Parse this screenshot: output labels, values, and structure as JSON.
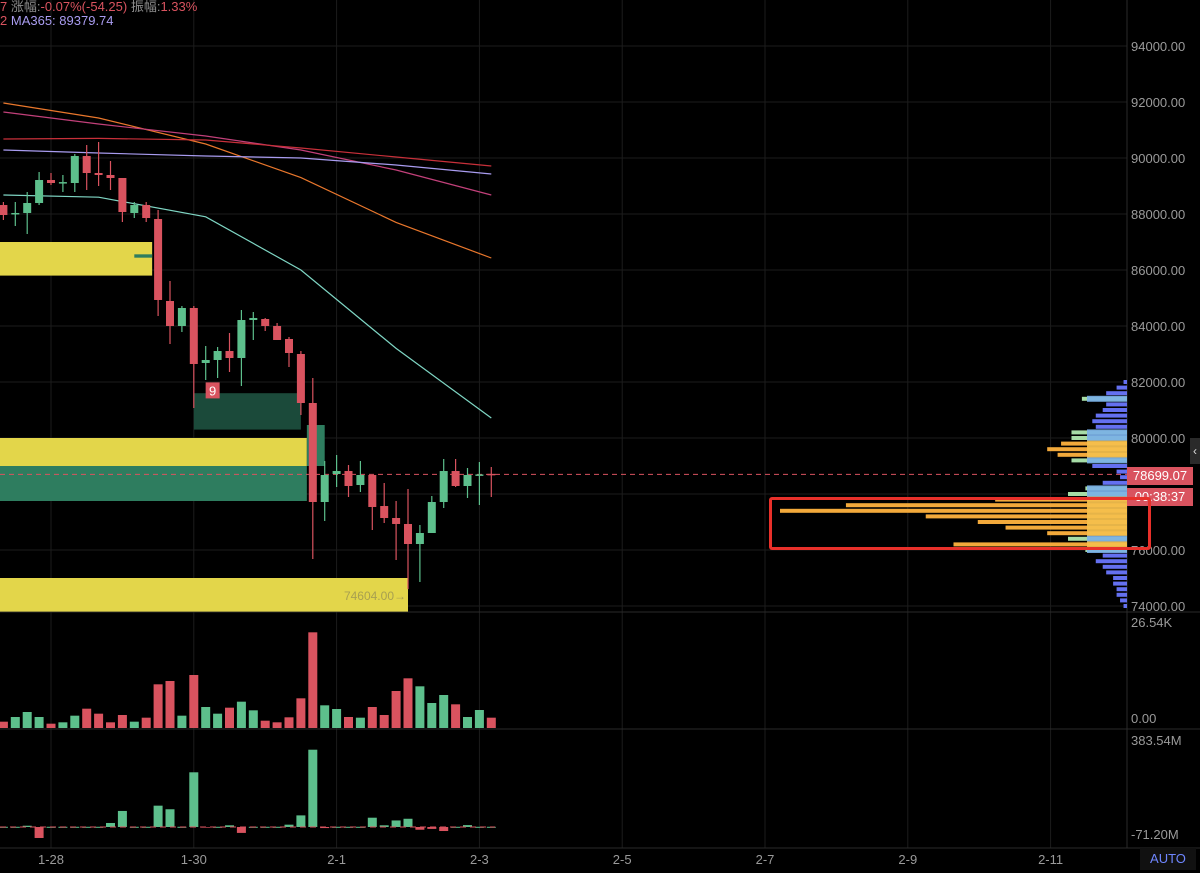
{
  "header": {
    "line1_prefix": "7",
    "change_label": "涨幅:",
    "change_value": "-0.07%(-54.25)",
    "amplitude_label": "振幅:",
    "amplitude_value": "1.33%",
    "line2_prefix": "2",
    "ma365_label": "MA365:",
    "ma365_value": "89379.74"
  },
  "price_tag": "78699.07",
  "countdown": "00:38:37",
  "auto_button": "AUTO",
  "collapse_icon": "chevron-left-icon",
  "colors": {
    "up": "#5dbf8c",
    "down": "#d9535f",
    "zone_yellow": "#e3d64a",
    "zone_green": "#2e7d5f",
    "zone_dark_green": "#1b4a3a",
    "annotation": "#e8302a",
    "ma_teal": "#7fd6c4",
    "ma_orange": "#e9772c",
    "ma_magenta": "#c2407a",
    "ma_red": "#c8303a",
    "ma365": "#a99cf0"
  },
  "chart_data": [
    {
      "type": "candlestick",
      "interval": "4h",
      "price_axis": {
        "ticks": [
          "94000.00",
          "92000.00",
          "90000.00",
          "88000.00",
          "86000.00",
          "84000.00",
          "82000.00",
          "80000.00",
          "76000.00",
          "74000.00"
        ],
        "range": [
          74000,
          94000
        ]
      },
      "time_axis": {
        "ticks": [
          "1-28",
          "1-30",
          "2-1",
          "2-3",
          "2-5",
          "2-7",
          "2-9",
          "2-11"
        ]
      },
      "grid": true,
      "last_price": 78699.07,
      "candles": [
        [
          "01-27 08:00",
          88321,
          88429,
          87786,
          87964
        ],
        [
          "01-27 12:00",
          88000,
          88429,
          87571,
          88036
        ],
        [
          "01-27 16:00",
          88036,
          88786,
          87286,
          88393
        ],
        [
          "01-27 20:00",
          88393,
          89500,
          88321,
          89214
        ],
        [
          "01-28 00:00",
          89214,
          89464,
          89036,
          89107
        ],
        [
          "01-28 04:00",
          89107,
          89393,
          88786,
          89140
        ],
        [
          "01-28 08:00",
          89107,
          90143,
          88786,
          90071
        ],
        [
          "01-28 12:00",
          90071,
          90464,
          88857,
          89464
        ],
        [
          "01-28 16:00",
          89464,
          90571,
          89000,
          89393
        ],
        [
          "01-28 20:00",
          89393,
          89893,
          88857,
          89286
        ],
        [
          "01-29 00:00",
          89286,
          89286,
          87714,
          88071
        ],
        [
          "01-29 04:00",
          88036,
          88429,
          87857,
          88321
        ],
        [
          "01-29 08:00",
          88321,
          88429,
          87714,
          87857
        ],
        [
          "01-29 12:00",
          87821,
          88143,
          84357,
          84929
        ],
        [
          "01-29 16:00",
          84893,
          85607,
          83357,
          84000
        ],
        [
          "01-29 20:00",
          84000,
          84714,
          83786,
          84643
        ],
        [
          "01-30 00:00",
          84643,
          84714,
          81071,
          82643
        ],
        [
          "01-30 04:00",
          82679,
          83286,
          82071,
          82786
        ],
        [
          "01-30 08:00",
          82786,
          83250,
          82143,
          83107
        ],
        [
          "01-30 12:00",
          83107,
          83750,
          82357,
          82857
        ],
        [
          "01-30 16:00",
          82857,
          84571,
          81857,
          84214
        ],
        [
          "01-30 20:00",
          84214,
          84500,
          83500,
          84286
        ],
        [
          "01-31 00:00",
          84250,
          84286,
          83821,
          84000
        ],
        [
          "01-31 04:00",
          84000,
          84107,
          83500,
          83500
        ],
        [
          "01-31 08:00",
          83536,
          83607,
          82536,
          83036
        ],
        [
          "01-31 12:00",
          83000,
          83107,
          80821,
          81250
        ],
        [
          "01-31 16:00",
          81250,
          82143,
          75679,
          77714
        ],
        [
          "01-31 20:00",
          77714,
          79179,
          77036,
          78679
        ],
        [
          "02-01 00:00",
          78714,
          79393,
          78250,
          78821
        ],
        [
          "02-01 04:00",
          78821,
          79036,
          77893,
          78286
        ],
        [
          "02-01 08:00",
          78321,
          79179,
          78071,
          78679
        ],
        [
          "02-01 12:00",
          78679,
          78679,
          76714,
          77536
        ],
        [
          "02-01 16:00",
          77571,
          78393,
          76964,
          77143
        ],
        [
          "02-01 20:00",
          77143,
          77750,
          75643,
          76929
        ],
        [
          "02-02 00:00",
          76929,
          78179,
          74604,
          76214
        ],
        [
          "02-02 04:00",
          76214,
          76893,
          74857,
          76607
        ],
        [
          "02-02 08:00",
          76607,
          77929,
          76607,
          77714
        ],
        [
          "02-02 12:00",
          77714,
          79250,
          77500,
          78821
        ],
        [
          "02-02 16:00",
          78821,
          79250,
          78250,
          78286
        ],
        [
          "02-02 20:00",
          78286,
          78929,
          77857,
          78679
        ],
        [
          "02-03 00:00",
          78679,
          79143,
          77607,
          78700
        ],
        [
          "02-03 04:00",
          78720,
          78964,
          77893,
          78699
        ]
      ],
      "moving_averages": [
        {
          "color_key": "ma_teal",
          "points": [
            [
              "01-27 08:00",
              88679
            ],
            [
              "01-28 16:00",
              88600
            ],
            [
              "01-30 04:00",
              87900
            ],
            [
              "01-31 12:00",
              86000
            ],
            [
              "02-01 20:00",
              83200
            ],
            [
              "02-03 04:00",
              80714
            ]
          ]
        },
        {
          "color_key": "ma_orange",
          "points": [
            [
              "01-27 08:00",
              91964
            ],
            [
              "01-28 16:00",
              91429
            ],
            [
              "01-30 04:00",
              90500
            ],
            [
              "01-31 12:00",
              89300
            ],
            [
              "02-01 20:00",
              87700
            ],
            [
              "02-03 04:00",
              86429
            ]
          ]
        },
        {
          "color_key": "ma_magenta",
          "points": [
            [
              "01-27 08:00",
              91643
            ],
            [
              "01-28 16:00",
              91214
            ],
            [
              "01-30 04:00",
              90786
            ],
            [
              "01-31 12:00",
              90286
            ],
            [
              "02-01 20:00",
              89571
            ],
            [
              "02-03 04:00",
              88679
            ]
          ]
        },
        {
          "color_key": "ma_red",
          "points": [
            [
              "01-27 08:00",
              90679
            ],
            [
              "01-28 16:00",
              90700
            ],
            [
              "01-30 04:00",
              90643
            ],
            [
              "01-31 12:00",
              90357
            ],
            [
              "02-01 20:00",
              90036
            ],
            [
              "02-03 04:00",
              89714
            ]
          ]
        },
        {
          "name": "MA365",
          "color_key": "ma365",
          "points": [
            [
              "01-27 08:00",
              90286
            ],
            [
              "01-28 16:00",
              90179
            ],
            [
              "01-30 04:00",
              90071
            ],
            [
              "01-31 12:00",
              90000
            ],
            [
              "02-01 20:00",
              89750
            ],
            [
              "02-03 04:00",
              89429
            ]
          ]
        }
      ],
      "zones": [
        {
          "color_key": "zone_yellow",
          "from": "01-27 04:00",
          "to": "01-29 10:00",
          "top": 87000,
          "bottom": 85800
        },
        {
          "color_key": "zone_green",
          "from": "01-29 04:00",
          "to": "01-29 10:00",
          "top": 86560,
          "bottom": 86440
        },
        {
          "color_key": "zone_dark_green",
          "from": "01-30 00:00",
          "to": "01-31 12:00",
          "top": 81600,
          "bottom": 80300
        },
        {
          "color_key": "zone_yellow",
          "from": "01-27 04:00",
          "to": "01-31 14:00",
          "top": 80000,
          "bottom": 79000
        },
        {
          "color_key": "zone_green",
          "from": "01-27 04:00",
          "to": "01-31 14:00",
          "top": 79000,
          "bottom": 77750
        },
        {
          "color_key": "zone_green",
          "from": "01-31 14:00",
          "to": "01-31 20:00",
          "top": 80464,
          "bottom": 79000
        },
        {
          "color_key": "zone_yellow",
          "from": "01-27 04:00",
          "to": "02-02 00:00",
          "top": 75000,
          "bottom": 73800,
          "label": "74604.00→"
        }
      ],
      "markers": [
        {
          "text": "9",
          "time": "01-30 06:00",
          "price": 81700
        }
      ],
      "volume_profile": [
        [
          82000,
          0.01
        ],
        [
          81800,
          0.03
        ],
        [
          81600,
          0.06
        ],
        [
          81400,
          0.13
        ],
        [
          81200,
          0.06
        ],
        [
          81000,
          0.07
        ],
        [
          80800,
          0.09
        ],
        [
          80600,
          0.1
        ],
        [
          80400,
          0.09
        ],
        [
          80200,
          0.16
        ],
        [
          80000,
          0.16
        ],
        [
          79800,
          0.19
        ],
        [
          79600,
          0.23
        ],
        [
          79400,
          0.2
        ],
        [
          79200,
          0.16
        ],
        [
          79000,
          0.1
        ],
        [
          78800,
          0.03
        ],
        [
          78600,
          0.02
        ],
        [
          78400,
          0.07
        ],
        [
          78200,
          0.12
        ],
        [
          78000,
          0.17
        ],
        [
          77800,
          0.38
        ],
        [
          77600,
          0.81
        ],
        [
          77400,
          1.0
        ],
        [
          77200,
          0.58
        ],
        [
          77000,
          0.43
        ],
        [
          76800,
          0.35
        ],
        [
          76600,
          0.23
        ],
        [
          76400,
          0.17
        ],
        [
          76200,
          0.5
        ],
        [
          76000,
          0.12
        ],
        [
          75800,
          0.07
        ],
        [
          75600,
          0.09
        ],
        [
          75400,
          0.07
        ],
        [
          75200,
          0.06
        ],
        [
          75000,
          0.04
        ],
        [
          74800,
          0.04
        ],
        [
          74600,
          0.03
        ],
        [
          74400,
          0.03
        ],
        [
          74200,
          0.02
        ],
        [
          74000,
          0.01
        ]
      ]
    },
    {
      "type": "bar",
      "axis_labels": {
        "max": "26.54K",
        "min": "0.00"
      },
      "range": [
        0,
        26540
      ],
      "values": [
        1580,
        2750,
        4000,
        2750,
        1080,
        1420,
        3080,
        4830,
        3580,
        1420,
        3250,
        1580,
        2580,
        10920,
        11750,
        3080,
        13250,
        5250,
        3580,
        5080,
        6580,
        4420,
        1830,
        1420,
        2670,
        7420,
        23920,
        5670,
        4750,
        2750,
        2580,
        5250,
        3250,
        9250,
        12420,
        10420,
        6250,
        8250,
        5920,
        2750,
        4500,
        2580
      ]
    },
    {
      "type": "bar",
      "axis_labels": {
        "max": "383.54M",
        "min": "-71.20M"
      },
      "range": [
        -71.2,
        383.54
      ],
      "values": [
        1,
        1,
        6,
        -52,
        1,
        1,
        1,
        1,
        1,
        19,
        76,
        1,
        1,
        101,
        84,
        1,
        259,
        -3,
        1,
        8,
        -28,
        1,
        1,
        1,
        11,
        55,
        366,
        -5,
        1,
        1,
        1,
        44,
        8,
        31,
        39,
        -13,
        -9,
        -19,
        1,
        9,
        1,
        1
      ]
    }
  ]
}
